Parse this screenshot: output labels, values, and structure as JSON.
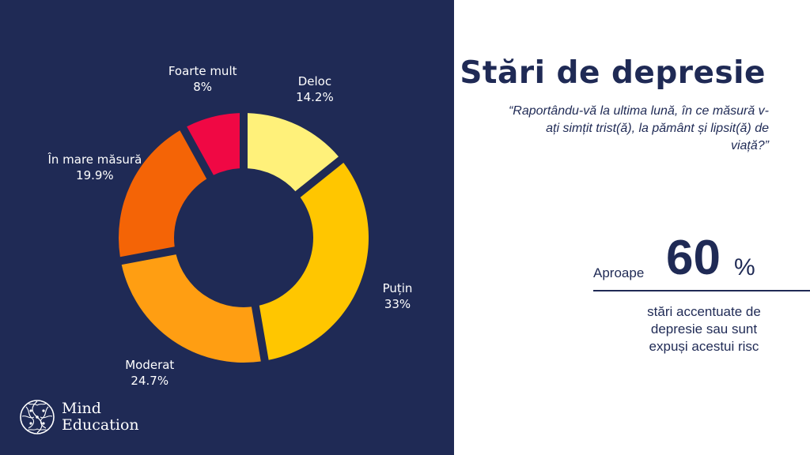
{
  "title": "Stări de depresie",
  "question": "“Raportându-vă la ultima lună, în ce măsură v-ați simțit trist(ă), la pământ și lipsit(ă) de viață?”",
  "stat": {
    "prefix": "Aproape",
    "value": "60",
    "unit": "%",
    "description_lines": [
      "stări accentuate de",
      "depresie sau sunt",
      "expuși acestui risc"
    ]
  },
  "logo": {
    "line1": "Mind",
    "line2": "Education"
  },
  "colors": {
    "panel": "#1f2a55",
    "accent_text": "#1f2a55",
    "background": "#ffffff"
  },
  "chart_data": {
    "type": "pie",
    "style": "donut",
    "title": "",
    "start": "top, clockwise",
    "slices": [
      {
        "label": "Deloc",
        "value": 14.2,
        "value_label": "14.2%",
        "color": "#fff17a"
      },
      {
        "label": "Puțin",
        "value": 33,
        "value_label": "33%",
        "color": "#ffc600"
      },
      {
        "label": "Moderat",
        "value": 24.7,
        "value_label": "24.7%",
        "color": "#ff9e12"
      },
      {
        "label": "În mare măsură",
        "value": 19.9,
        "value_label": "19.9%",
        "color": "#f46406"
      },
      {
        "label": "Foarte mult",
        "value": 8,
        "value_label": "8%",
        "color": "#f00844"
      }
    ]
  }
}
